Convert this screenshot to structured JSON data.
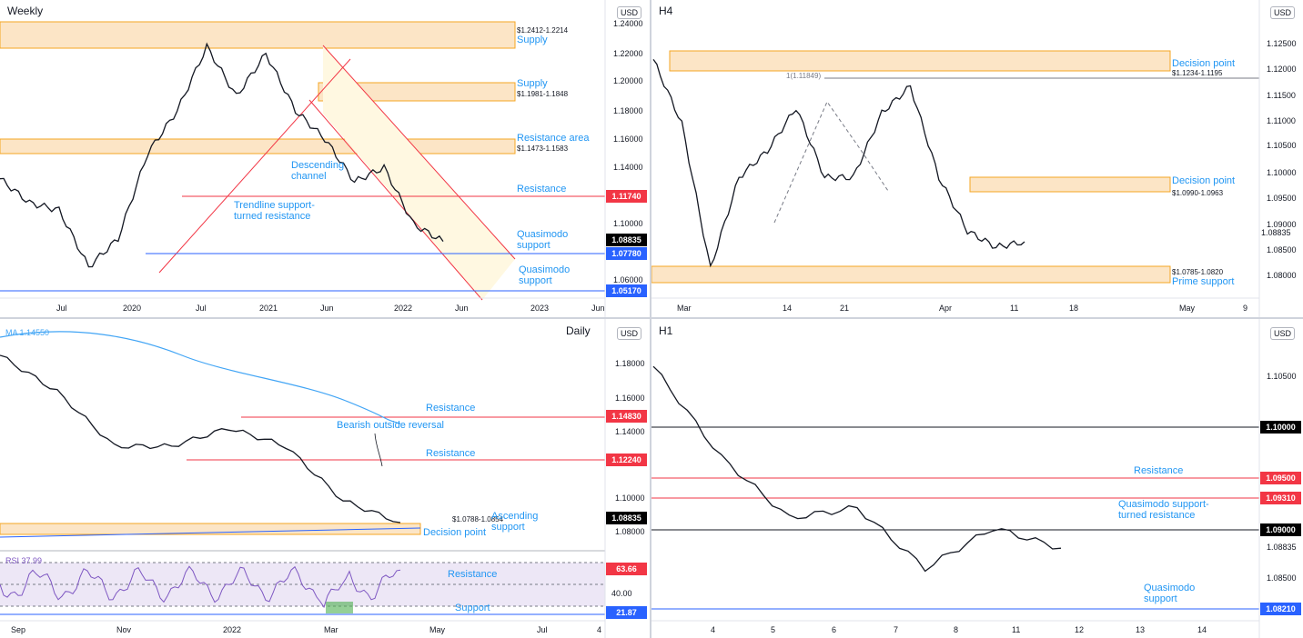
{
  "colors": {
    "up": "#131722",
    "down": "#131722",
    "red": "#f23645",
    "blue": "#2962ff",
    "label_blue": "#2196f3",
    "zone_fill": "#fce5c6",
    "zone_stroke": "#f5a623",
    "channel_fill": "#fff8e1",
    "black_badge": "#000000",
    "ma": "#42a5f5",
    "rsi": "#7e57c2"
  },
  "panels": {
    "weekly": {
      "title": "Weekly",
      "currency": "USD",
      "price_labels": [
        "1.24000",
        "1.22000",
        "1.20000",
        "1.18000",
        "1.16000",
        "1.14000",
        "1.12000",
        "1.10000",
        "1.06000"
      ],
      "date_labels": [
        "Jul",
        "2020",
        "Jul",
        "2021",
        "Jun",
        "2022",
        "Jun",
        "2023",
        "Jun"
      ],
      "zones": [
        {
          "range": "$1.2412-1.2214",
          "name": "Supply"
        },
        {
          "range": "$1.1981-1.1848",
          "name": "Supply"
        },
        {
          "range": "$1.1473-1.1583",
          "name": "Resistance area"
        }
      ],
      "annotations": [
        "Descending channel",
        "Trendline support-turned resistance",
        "Resistance",
        "Quasimodo support",
        "Quasimodo support"
      ],
      "badges": [
        {
          "text": "1.11740",
          "kind": "red"
        },
        {
          "text": "1.08835",
          "kind": "black"
        },
        {
          "text": "1.07780",
          "kind": "blue"
        },
        {
          "text": "1.05170",
          "kind": "blue"
        }
      ]
    },
    "h4": {
      "title": "H4",
      "currency": "USD",
      "price_labels": [
        "1.12500",
        "1.12000",
        "1.11500",
        "1.11000",
        "1.10500",
        "1.10000",
        "1.09500",
        "1.09000",
        "1.08500",
        "1.08000"
      ],
      "date_labels": [
        "Mar",
        "14",
        "21",
        "Apr",
        "11",
        "18",
        "May",
        "9"
      ],
      "zones": [
        {
          "range": "$1.1234-1.1195",
          "name": "Decision point"
        },
        {
          "range": "$1.0990-1.0963",
          "name": "Decision point"
        },
        {
          "range": "$1.0785-1.0820",
          "name": "Prime support"
        }
      ],
      "level_label": "1(1.11849)",
      "badges": [
        {
          "text": "1.08835",
          "kind": "plain"
        }
      ]
    },
    "daily": {
      "title": "Daily",
      "currency": "USD",
      "ma_label": "MA",
      "ma_value": "1.14550",
      "price_labels": [
        "1.18000",
        "1.16000",
        "1.14000",
        "1.10000",
        "1.08000"
      ],
      "date_labels": [
        "Sep",
        "Nov",
        "2022",
        "Mar",
        "May",
        "Jul",
        "4"
      ],
      "annotations": [
        "Resistance",
        "Bearish outside reversal",
        "Resistance",
        "Ascending support",
        "Decision point"
      ],
      "zone_range": "$1.0788-1.0854",
      "badges": [
        {
          "text": "1.14830",
          "kind": "red"
        },
        {
          "text": "1.12240",
          "kind": "red"
        },
        {
          "text": "1.08835",
          "kind": "black"
        }
      ],
      "rsi": {
        "label": "RSI",
        "value": "37.99",
        "mid_label": "40.00",
        "annotations": [
          "Resistance",
          "Support"
        ],
        "badges": [
          {
            "text": "63.66",
            "kind": "red"
          },
          {
            "text": "21.87",
            "kind": "blue"
          }
        ]
      }
    },
    "h1": {
      "title": "H1",
      "currency": "USD",
      "price_labels": [
        "1.10500",
        "1.10000",
        "1.09500",
        "1.08835",
        "1.08500"
      ],
      "date_labels": [
        "4",
        "5",
        "6",
        "7",
        "8",
        "11",
        "12",
        "13",
        "14"
      ],
      "annotations": [
        "Resistance",
        "Quasimodo support-turned resistance",
        "Quasimodo support"
      ],
      "badges": [
        {
          "text": "1.10000",
          "kind": "black"
        },
        {
          "text": "1.09500",
          "kind": "red"
        },
        {
          "text": "1.09310",
          "kind": "red"
        },
        {
          "text": "1.09000",
          "kind": "black"
        },
        {
          "text": "1.08210",
          "kind": "blue"
        }
      ]
    }
  },
  "chart_data": [
    {
      "type": "line",
      "title": "Weekly",
      "series": [
        {
          "name": "",
          "x": [
            "2019-06",
            "2019-09",
            "2020-01",
            "2020-03",
            "2020-05",
            "2020-07",
            "2020-09",
            "2021-01",
            "2021-03",
            "2021-05",
            "2021-07",
            "2021-09",
            "2021-11",
            "2022-01",
            "2022-03",
            "2022-04"
          ],
          "values": [
            1.132,
            1.115,
            1.11,
            1.07,
            1.09,
            1.15,
            1.18,
            1.225,
            1.19,
            1.22,
            1.18,
            1.16,
            1.13,
            1.14,
            1.1,
            1.088
          ]
        }
      ],
      "ylim": [
        1.05,
        1.245
      ],
      "levels": [
        1.1174,
        1.0778,
        1.0517
      ]
    },
    {
      "type": "line",
      "title": "H4",
      "series": [
        {
          "name": "",
          "x": [
            "Feb-28",
            "Mar-03",
            "Mar-07",
            "Mar-10",
            "Mar-14",
            "Mar-17",
            "Mar-21",
            "Mar-24",
            "Mar-28",
            "Mar-31",
            "Apr-04",
            "Apr-07",
            "Apr-11",
            "Apr-13"
          ],
          "values": [
            1.122,
            1.11,
            1.083,
            1.1,
            1.105,
            1.113,
            1.1,
            1.1,
            1.112,
            1.117,
            1.1,
            1.09,
            1.087,
            1.088
          ]
        }
      ],
      "ylim": [
        1.078,
        1.128
      ]
    },
    {
      "type": "line",
      "title": "Daily",
      "series": [
        {
          "name": "",
          "x": [
            "Sep",
            "Oct",
            "Nov",
            "Dec",
            "2022",
            "Feb",
            "Mar",
            "Apr"
          ],
          "values": [
            1.18,
            1.16,
            1.13,
            1.13,
            1.14,
            1.13,
            1.1,
            1.088
          ]
        }
      ],
      "ylim": [
        1.075,
        1.19
      ],
      "levels": [
        1.1483,
        1.1224
      ]
    },
    {
      "type": "line",
      "title": "H1",
      "series": [
        {
          "name": "",
          "x": [
            "4",
            "5",
            "6",
            "7",
            "8",
            "11",
            "12"
          ],
          "values": [
            1.106,
            1.097,
            1.091,
            1.092,
            1.086,
            1.09,
            1.088
          ]
        }
      ],
      "ylim": [
        1.081,
        1.108
      ],
      "levels": [
        1.1,
        1.095,
        1.0931,
        1.09,
        1.0821
      ]
    }
  ]
}
